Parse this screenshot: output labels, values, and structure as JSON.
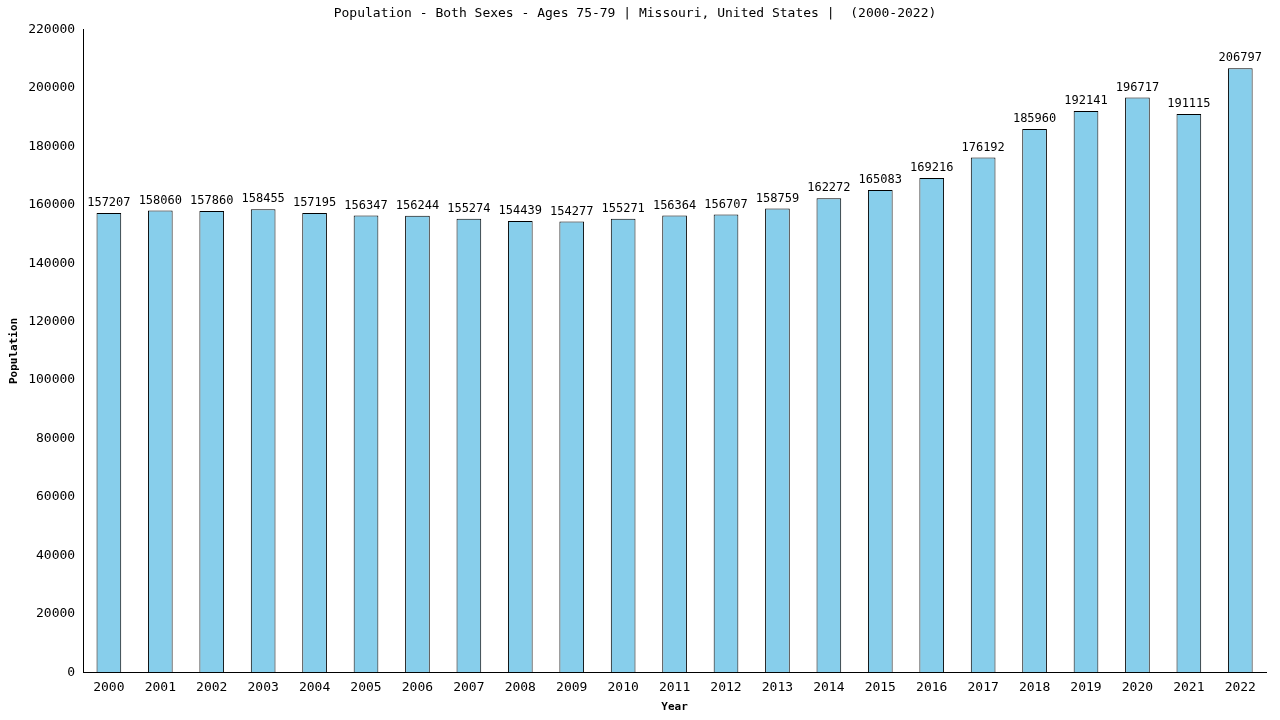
{
  "chart_data": {
    "type": "bar",
    "title": "Population - Both Sexes - Ages 75-79 | Missouri, United States |  (2000-2022)",
    "x_label": "Year",
    "y_label": "Population",
    "categories": [
      "2000",
      "2001",
      "2002",
      "2003",
      "2004",
      "2005",
      "2006",
      "2007",
      "2008",
      "2009",
      "2010",
      "2011",
      "2012",
      "2013",
      "2014",
      "2015",
      "2016",
      "2017",
      "2018",
      "2019",
      "2020",
      "2021",
      "2022"
    ],
    "values": [
      157207,
      158060,
      157860,
      158455,
      157195,
      156347,
      156244,
      155274,
      154439,
      154277,
      155271,
      156364,
      156707,
      158759,
      162272,
      165083,
      169216,
      176192,
      185960,
      192141,
      196717,
      191115,
      206797
    ],
    "color": "#87ceeb",
    "ylim": [
      0,
      220000
    ],
    "yticks": [
      0,
      20000,
      40000,
      60000,
      80000,
      100000,
      120000,
      140000,
      160000,
      180000,
      200000,
      220000
    ],
    "grid": false,
    "data_labels": true
  }
}
